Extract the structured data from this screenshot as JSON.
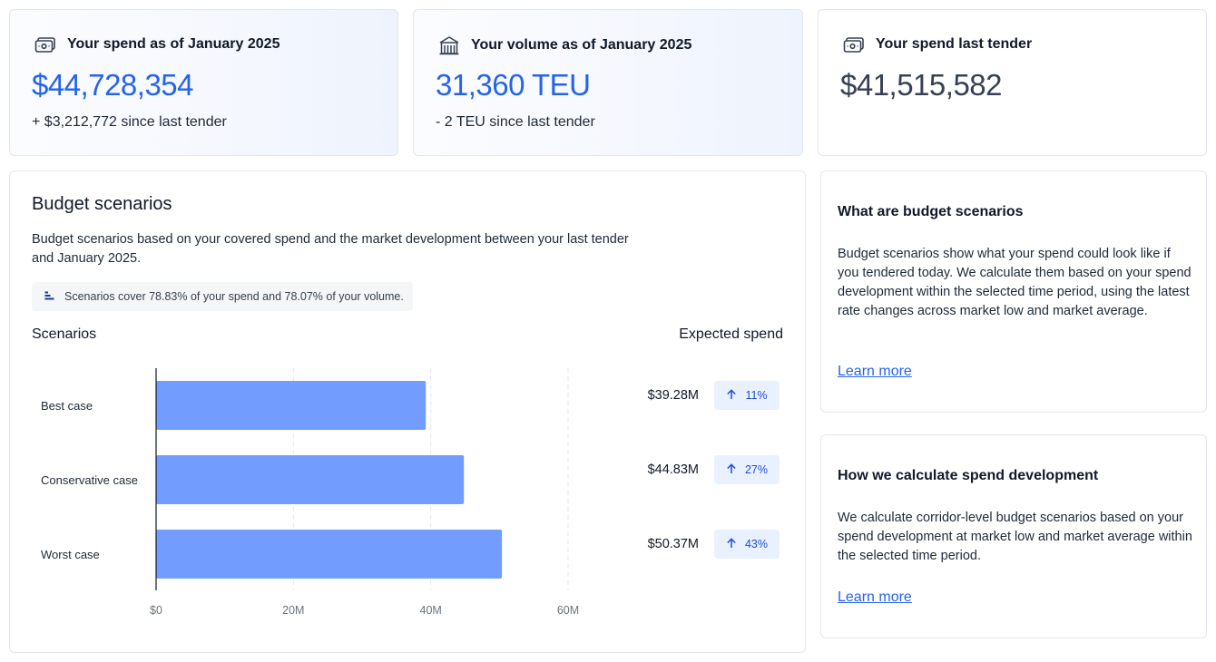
{
  "stats": [
    {
      "icon": "money-icon",
      "title": "Your spend as of January 2025",
      "value": "$44,728,354",
      "sub": "+ $3,212,772 since last tender"
    },
    {
      "icon": "warehouse-icon",
      "title": "Your volume as of January 2025",
      "value": "31,360 TEU",
      "sub": "- 2 TEU since last tender"
    },
    {
      "icon": "money-icon",
      "title": "Your spend last tender",
      "value": "$41,515,582"
    }
  ],
  "budget": {
    "title": "Budget scenarios",
    "description": "Budget scenarios based on your covered spend and the market development between your last tender and January 2025.",
    "coverage": "Scenarios cover 78.83% of your spend and 78.07% of your volume.",
    "scenarios_header": "Scenarios",
    "expected_header": "Expected spend",
    "rows": [
      {
        "spend": "$39.28M",
        "change": "11%"
      },
      {
        "spend": "$44.83M",
        "change": "27%"
      },
      {
        "spend": "$50.37M",
        "change": "43%"
      }
    ]
  },
  "chart_data": {
    "type": "bar",
    "orientation": "horizontal",
    "categories": [
      "Best case",
      "Conservative case",
      "Worst case"
    ],
    "values": [
      39.28,
      44.83,
      50.37
    ],
    "unit": "M",
    "xlim": [
      0,
      60
    ],
    "ticks": [
      0,
      20,
      40,
      60
    ],
    "tick_labels": [
      "$0",
      "20M",
      "40M",
      "60M"
    ],
    "grid": true,
    "bar_color": "#729cfd"
  },
  "info_cards": [
    {
      "title": "What are budget scenarios",
      "text": "Budget scenarios show what your spend could look like if you tendered today. We calculate them based on your spend development within the selected time period, using the latest rate changes across market low and market average.",
      "link": "Learn more"
    },
    {
      "title": "How we calculate spend development",
      "text": "We calculate corridor-level budget scenarios based on your spend development at market low and market average within the selected time period.",
      "link": "Learn more"
    }
  ]
}
